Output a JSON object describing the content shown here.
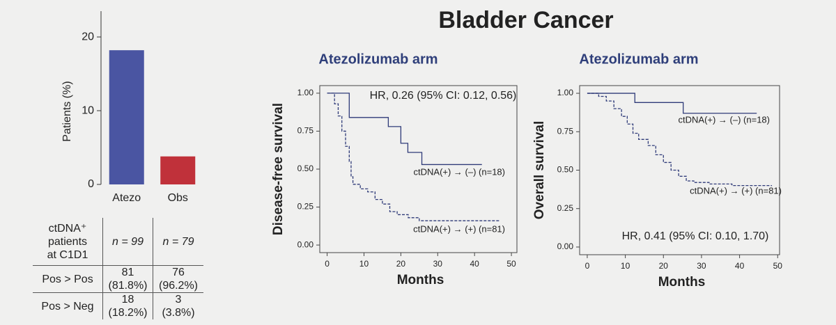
{
  "title": "Bladder Cancer",
  "chart_data": [
    {
      "type": "bar",
      "ylabel": "Patients (%)",
      "categories": [
        "Atezo",
        "Obs"
      ],
      "values": [
        18.2,
        3.8
      ],
      "colors": [
        "#4a55a2",
        "#c0313a"
      ],
      "ylim": [
        0,
        23.5
      ],
      "yticks": [
        0,
        10,
        20
      ]
    },
    {
      "type": "line",
      "step": true,
      "title": "Atezolizumab arm",
      "xlabel": "Months",
      "ylabel": "Disease-free survival",
      "annotation": "HR, 0.26 (95% CI: 0.12, 0.56)",
      "xlim": [
        -2,
        51.5
      ],
      "ylim": [
        -0.05,
        1.05
      ],
      "xticks": [
        0,
        10,
        20,
        30,
        40,
        50
      ],
      "yticks": [
        {
          "value": 0,
          "label": "0.00"
        },
        {
          "value": 0.25,
          "label": "0.25"
        },
        {
          "value": 0.5,
          "label": "0.50"
        },
        {
          "value": 0.75,
          "label": "0.75"
        },
        {
          "value": 1,
          "label": "1.00"
        }
      ],
      "series": [
        {
          "name": "ctDNA(+) → (–) (n=18)",
          "color": "#2e3a78",
          "dashed": false,
          "x": [
            0,
            6,
            16.6,
            20,
            21.9,
            25.7,
            42
          ],
          "values": [
            1,
            0.84,
            0.78,
            0.67,
            0.61,
            0.53,
            0.53
          ]
        },
        {
          "name": "ctDNA(+) → (+) (n=81)",
          "color": "#2e3a78",
          "dashed": true,
          "x": [
            0,
            2,
            3,
            4,
            5,
            6,
            6.5,
            7,
            9,
            11,
            13,
            15,
            17,
            19,
            22,
            25,
            47
          ],
          "values": [
            1,
            0.93,
            0.85,
            0.75,
            0.65,
            0.55,
            0.45,
            0.4,
            0.37,
            0.35,
            0.3,
            0.27,
            0.22,
            0.2,
            0.18,
            0.16,
            0.16
          ]
        }
      ]
    },
    {
      "type": "line",
      "step": true,
      "title": "Atezolizumab arm",
      "xlabel": "Months",
      "ylabel": "Overall survival",
      "annotation": "HR, 0.41 (95% CI: 0.10, 1.70)",
      "xlim": [
        -2,
        50.5
      ],
      "ylim": [
        -0.05,
        1.05
      ],
      "xticks": [
        0,
        10,
        20,
        30,
        40,
        50
      ],
      "yticks": [
        {
          "value": 0,
          "label": "0.00"
        },
        {
          "value": 0.25,
          "label": "0.25"
        },
        {
          "value": 0.5,
          "label": "0.50"
        },
        {
          "value": 0.75,
          "label": "0.75"
        },
        {
          "value": 1,
          "label": "1.00"
        }
      ],
      "series": [
        {
          "name": "ctDNA(+) → (–) (n=18)",
          "color": "#2e3a78",
          "dashed": false,
          "x": [
            0,
            12.5,
            25.2,
            44.5
          ],
          "values": [
            1,
            0.94,
            0.87,
            0.87
          ]
        },
        {
          "name": "ctDNA(+) → (+) (n=81)",
          "color": "#2e3a78",
          "dashed": true,
          "x": [
            0,
            3,
            5,
            7,
            9,
            10.5,
            12,
            13.5,
            16,
            18,
            20,
            22,
            24,
            26,
            28,
            32,
            38,
            48.5
          ],
          "values": [
            1,
            0.98,
            0.95,
            0.9,
            0.85,
            0.8,
            0.74,
            0.7,
            0.66,
            0.6,
            0.55,
            0.5,
            0.46,
            0.43,
            0.42,
            0.41,
            0.4,
            0.4
          ]
        }
      ]
    }
  ],
  "table": {
    "header": [
      "ctDNA⁺\npatients\nat C1D1",
      "n = 99",
      "n = 79"
    ],
    "rows": [
      [
        "Pos > Pos",
        "81\n(81.8%)",
        "76\n(96.2%)"
      ],
      [
        "Pos > Neg",
        "18\n(18.2%)",
        "3\n(3.8%)"
      ]
    ]
  }
}
